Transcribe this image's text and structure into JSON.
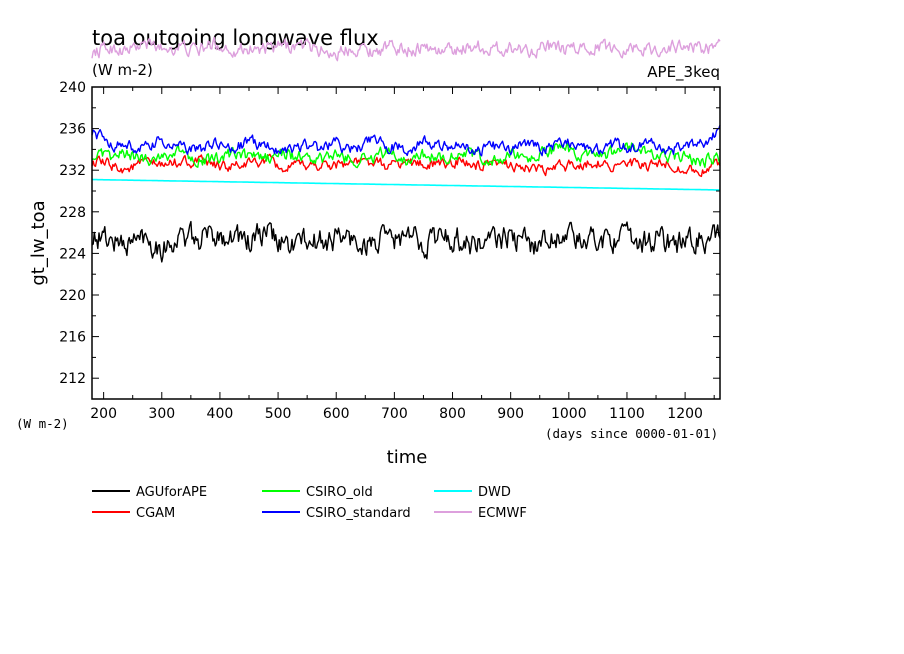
{
  "chart_data": {
    "type": "line",
    "title": "toa outgoing longwave flux",
    "subtitle": "(W m-2)",
    "experiment_label": "APE_3keq",
    "xlabel": "time",
    "ylabel": "gt_lw_toa",
    "yunits": "(W m-2)",
    "xunits": "(days since 0000-01-01)",
    "xlim": [
      180,
      1260
    ],
    "ylim": [
      210,
      240
    ],
    "x_ticks": [
      200,
      300,
      400,
      500,
      600,
      700,
      800,
      900,
      1000,
      1100,
      1200
    ],
    "y_ticks": [
      212,
      216,
      220,
      224,
      228,
      232,
      236,
      240
    ],
    "grid": false,
    "legend_position": "bottom",
    "series": [
      {
        "name": "AGUforAPE",
        "color": "#000000",
        "x": [
          180,
          210,
          240,
          270,
          300,
          330,
          360,
          390,
          420,
          450,
          480,
          510,
          540,
          570,
          600,
          630,
          660,
          690,
          720,
          750,
          780,
          810,
          840,
          870,
          900,
          930,
          960,
          990,
          1020,
          1050,
          1080,
          1110,
          1140,
          1170,
          1200,
          1230,
          1260
        ],
        "y": [
          225.8,
          225.3,
          224.9,
          225.6,
          224.6,
          225.5,
          225.2,
          225.9,
          225.8,
          225.1,
          225.9,
          224.8,
          225.1,
          225.0,
          225.6,
          225.2,
          224.9,
          225.3,
          225.5,
          225.1,
          225.6,
          225.4,
          224.8,
          225.2,
          225.6,
          224.9,
          225.2,
          226.1,
          225.0,
          225.4,
          225.6,
          225.0,
          225.4,
          225.1,
          224.9,
          225.5,
          225.3
        ]
      },
      {
        "name": "CGAM",
        "color": "#ff0000",
        "x": [
          180,
          210,
          240,
          270,
          300,
          330,
          360,
          390,
          420,
          450,
          480,
          510,
          540,
          570,
          600,
          630,
          660,
          690,
          720,
          750,
          780,
          810,
          840,
          870,
          900,
          930,
          960,
          990,
          1020,
          1050,
          1080,
          1110,
          1140,
          1170,
          1200,
          1230,
          1260
        ],
        "y": [
          232.8,
          232.5,
          232.1,
          232.7,
          232.4,
          232.9,
          232.8,
          232.5,
          232.3,
          232.6,
          232.9,
          232.1,
          232.4,
          232.5,
          232.6,
          232.8,
          232.7,
          232.4,
          232.8,
          232.6,
          232.5,
          232.9,
          232.4,
          232.3,
          232.6,
          232.2,
          231.9,
          232.4,
          232.6,
          232.8,
          232.4,
          232.5,
          232.3,
          232.6,
          232.1,
          231.9,
          232.5
        ]
      },
      {
        "name": "CSIRO_old",
        "color": "#00ff00",
        "x": [
          180,
          210,
          240,
          270,
          300,
          330,
          360,
          390,
          420,
          450,
          480,
          510,
          540,
          570,
          600,
          630,
          660,
          690,
          720,
          750,
          780,
          810,
          840,
          870,
          900,
          930,
          960,
          990,
          1020,
          1050,
          1080,
          1110,
          1140,
          1170,
          1200,
          1230,
          1260
        ],
        "y": [
          233.5,
          233.1,
          233.6,
          233.0,
          233.4,
          233.8,
          233.2,
          232.8,
          233.5,
          233.3,
          233.1,
          233.6,
          233.2,
          232.9,
          233.4,
          233.0,
          233.3,
          233.7,
          233.1,
          233.5,
          233.2,
          233.6,
          233.3,
          232.8,
          233.4,
          233.1,
          233.7,
          234.2,
          233.3,
          233.0,
          233.6,
          234.4,
          233.2,
          233.4,
          233.1,
          232.9,
          233.2
        ]
      },
      {
        "name": "CSIRO_standard",
        "color": "#0000ff",
        "x": [
          180,
          210,
          240,
          270,
          300,
          330,
          360,
          390,
          420,
          450,
          480,
          510,
          540,
          570,
          600,
          630,
          660,
          690,
          720,
          750,
          780,
          810,
          840,
          870,
          900,
          930,
          960,
          990,
          1020,
          1050,
          1080,
          1110,
          1140,
          1170,
          1200,
          1230,
          1260
        ],
        "y": [
          235.8,
          234.6,
          234.3,
          234.0,
          234.8,
          234.2,
          233.9,
          234.5,
          234.1,
          234.7,
          234.3,
          234.0,
          234.4,
          234.1,
          234.6,
          234.0,
          234.8,
          234.3,
          234.1,
          234.7,
          234.2,
          234.5,
          233.8,
          234.3,
          234.0,
          234.5,
          234.1,
          234.8,
          234.3,
          234.0,
          234.4,
          234.1,
          234.6,
          233.9,
          234.2,
          234.5,
          235.9
        ]
      },
      {
        "name": "DWD",
        "color": "#00ffff",
        "x": [
          180,
          1260
        ],
        "y": [
          231.1,
          230.1
        ]
      },
      {
        "name": "ECMWF",
        "color": "#dda0dd",
        "x": [
          180,
          210,
          240,
          270,
          300,
          330,
          360,
          390,
          420,
          450,
          480,
          510,
          540,
          570,
          600,
          630,
          660,
          690,
          720,
          750,
          780,
          810,
          840,
          870,
          900,
          930,
          960,
          990,
          1020,
          1050,
          1080,
          1110,
          1140,
          1170,
          1200,
          1230,
          1260
        ],
        "y": [
          243.3,
          243.8,
          243.5,
          244.1,
          243.7,
          243.9,
          243.4,
          244.2,
          243.6,
          243.8,
          243.5,
          243.9,
          244.0,
          243.6,
          243.2,
          243.9,
          243.5,
          243.8,
          243.6,
          243.9,
          243.4,
          243.7,
          244.0,
          243.5,
          243.8,
          243.6,
          243.9,
          243.5,
          243.7,
          244.0,
          243.6,
          243.9,
          243.5,
          243.8,
          244.0,
          243.7,
          243.8
        ]
      }
    ]
  }
}
